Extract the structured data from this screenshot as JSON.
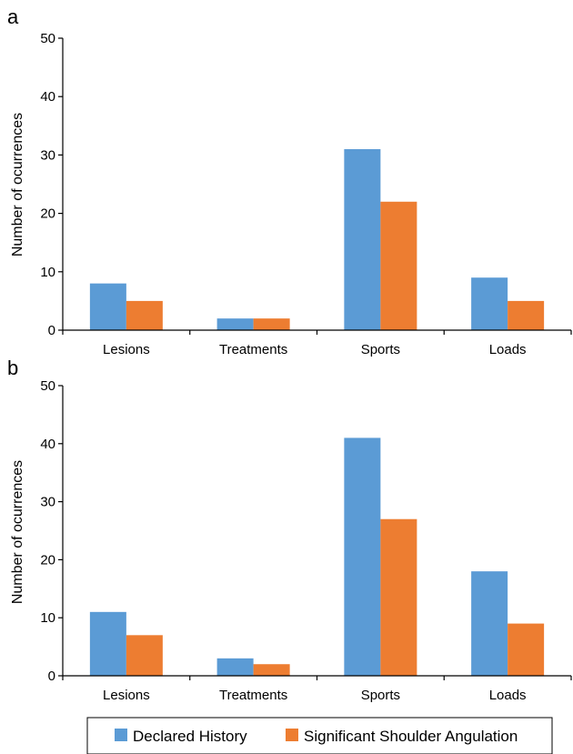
{
  "chart_data": [
    {
      "panel": "a",
      "type": "bar",
      "categories": [
        "Lesions",
        "Treatments",
        "Sports",
        "Loads"
      ],
      "series": [
        {
          "name": "Declared History",
          "values": [
            8,
            2,
            31,
            9
          ]
        },
        {
          "name": "Significant Shoulder Angulation",
          "values": [
            5,
            2,
            22,
            5
          ]
        }
      ],
      "ylabel": "Number of ocurrences",
      "xlabel": "",
      "ylim": [
        0,
        50
      ],
      "yticks": [
        0,
        10,
        20,
        30,
        40,
        50
      ],
      "grid": false
    },
    {
      "panel": "b",
      "type": "bar",
      "categories": [
        "Lesions",
        "Treatments",
        "Sports",
        "Loads"
      ],
      "series": [
        {
          "name": "Declared History",
          "values": [
            11,
            3,
            41,
            18
          ]
        },
        {
          "name": "Significant Shoulder Angulation",
          "values": [
            7,
            2,
            27,
            9
          ]
        }
      ],
      "ylabel": "Number of ocurrences",
      "xlabel": "",
      "ylim": [
        0,
        50
      ],
      "yticks": [
        0,
        10,
        20,
        30,
        40,
        50
      ],
      "grid": false
    }
  ],
  "legend": {
    "placement": "bottom",
    "items": [
      "Declared History",
      "Significant Shoulder Angulation"
    ]
  },
  "colors": {
    "Declared History": "#5b9bd5",
    "Significant Shoulder Angulation": "#ed7d31",
    "axis": "#000000"
  }
}
